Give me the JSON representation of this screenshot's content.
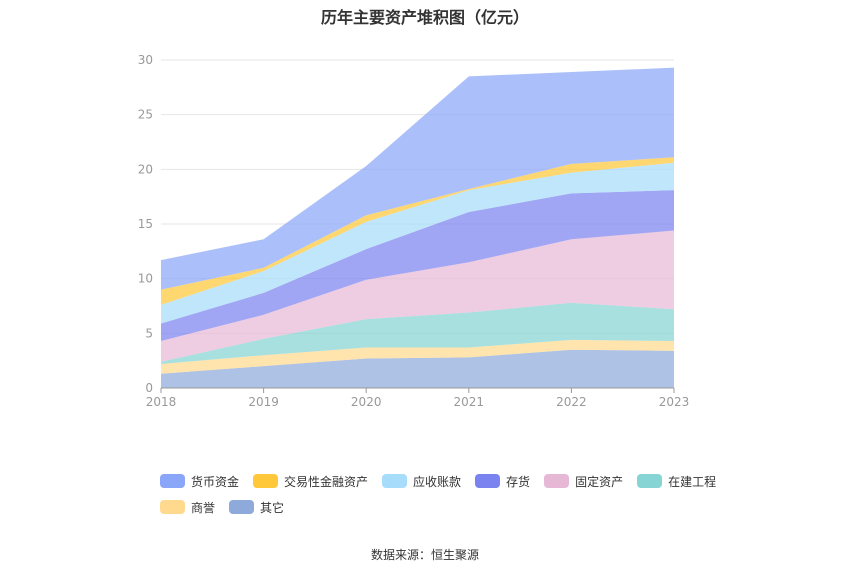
{
  "chart_data": {
    "type": "area",
    "stacked": true,
    "title": "历年主要资产堆积图（亿元）",
    "x": [
      "2018",
      "2019",
      "2020",
      "2021",
      "2022",
      "2023"
    ],
    "ylim": [
      0,
      30
    ],
    "yticks": [
      "0",
      "5",
      "10",
      "15",
      "20",
      "25",
      "30"
    ],
    "grid": true,
    "legend_position": "bottom",
    "series": [
      {
        "name": "其它",
        "color": "#8eaadb",
        "values": [
          1.3,
          2.0,
          2.7,
          2.8,
          3.5,
          3.4
        ]
      },
      {
        "name": "商誉",
        "color": "#ffd98e",
        "values": [
          0.9,
          1.0,
          1.0,
          0.9,
          0.9,
          0.9
        ]
      },
      {
        "name": "在建工程",
        "color": "#87d4d4",
        "values": [
          0.2,
          1.5,
          2.6,
          3.2,
          3.4,
          2.9
        ]
      },
      {
        "name": "固定资产",
        "color": "#e7b8d6",
        "values": [
          1.9,
          2.2,
          3.6,
          4.6,
          5.8,
          7.2
        ]
      },
      {
        "name": "存货",
        "color": "#7b83f0",
        "values": [
          1.6,
          2.0,
          2.8,
          4.6,
          4.2,
          3.7
        ]
      },
      {
        "name": "应收账款",
        "color": "#a8dcfb",
        "values": [
          1.7,
          2.0,
          2.5,
          2.0,
          1.9,
          2.5
        ]
      },
      {
        "name": "交易性金融资产",
        "color": "#ffc83a",
        "values": [
          1.4,
          0.3,
          0.6,
          0.1,
          0.8,
          0.5
        ]
      },
      {
        "name": "货币资金",
        "color": "#8aa6f8",
        "values": [
          2.7,
          2.6,
          4.5,
          10.3,
          8.4,
          8.2
        ]
      }
    ],
    "legend_order": [
      "货币资金",
      "交易性金融资产",
      "应收账款",
      "存货",
      "固定资产",
      "在建工程",
      "商誉",
      "其它"
    ]
  },
  "source": "数据来源：恒生聚源"
}
